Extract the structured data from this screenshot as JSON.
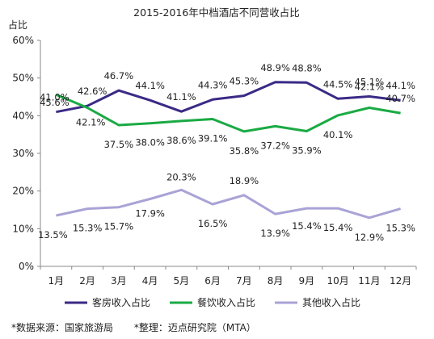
{
  "chart_data": {
    "type": "line",
    "title": "2015-2016年中档酒店不同营收占比",
    "ylabel": "占比",
    "xlabel": "",
    "categories": [
      "1月",
      "2月",
      "3月",
      "4月",
      "5月",
      "6月",
      "7月",
      "8月",
      "9月",
      "10月",
      "11月",
      "12月"
    ],
    "y_ticks": [
      "0%",
      "10%",
      "20%",
      "30%",
      "40%",
      "50%",
      "60%"
    ],
    "ylim": [
      0,
      60
    ],
    "grid": false,
    "legend_position": "bottom",
    "series": [
      {
        "name": "客房收入占比",
        "color": "#3b2a86",
        "values": [
          41.0,
          42.6,
          46.7,
          44.1,
          41.1,
          44.3,
          45.3,
          48.9,
          48.8,
          44.5,
          45.1,
          44.1
        ],
        "labels": [
          "41.0%",
          "42.6%",
          "46.7%",
          "44.1%",
          "41.1%",
          "44.3%",
          "45.3%",
          "48.9%",
          "48.8%",
          "44.5%",
          "45.1%",
          "44.1%"
        ]
      },
      {
        "name": "餐饮收入占比",
        "color": "#1aaa44",
        "values": [
          45.6,
          42.1,
          37.5,
          38.0,
          38.6,
          39.1,
          35.8,
          37.2,
          35.9,
          40.1,
          42.1,
          40.7
        ],
        "labels": [
          "45.6%",
          "42.1%",
          "37.5%",
          "38.0%",
          "38.6%",
          "39.1%",
          "35.8%",
          "37.2%",
          "35.9%",
          "40.1%",
          "42.1%",
          "40.7%"
        ]
      },
      {
        "name": "其他收入占比",
        "color": "#a9a3d6",
        "values": [
          13.5,
          15.3,
          15.7,
          17.9,
          20.3,
          16.5,
          18.9,
          13.9,
          15.4,
          15.4,
          12.9,
          15.3
        ],
        "labels": [
          "13.5%",
          "15.3%",
          "15.7%",
          "17.9%",
          "20.3%",
          "16.5%",
          "18.9%",
          "13.9%",
          "15.4%",
          "15.4%",
          "12.9%",
          "15.3%"
        ]
      }
    ]
  },
  "footer": {
    "source": "*数据来源：国家旅游局",
    "compiled": "*整理：迈点研究院（MTA）"
  }
}
